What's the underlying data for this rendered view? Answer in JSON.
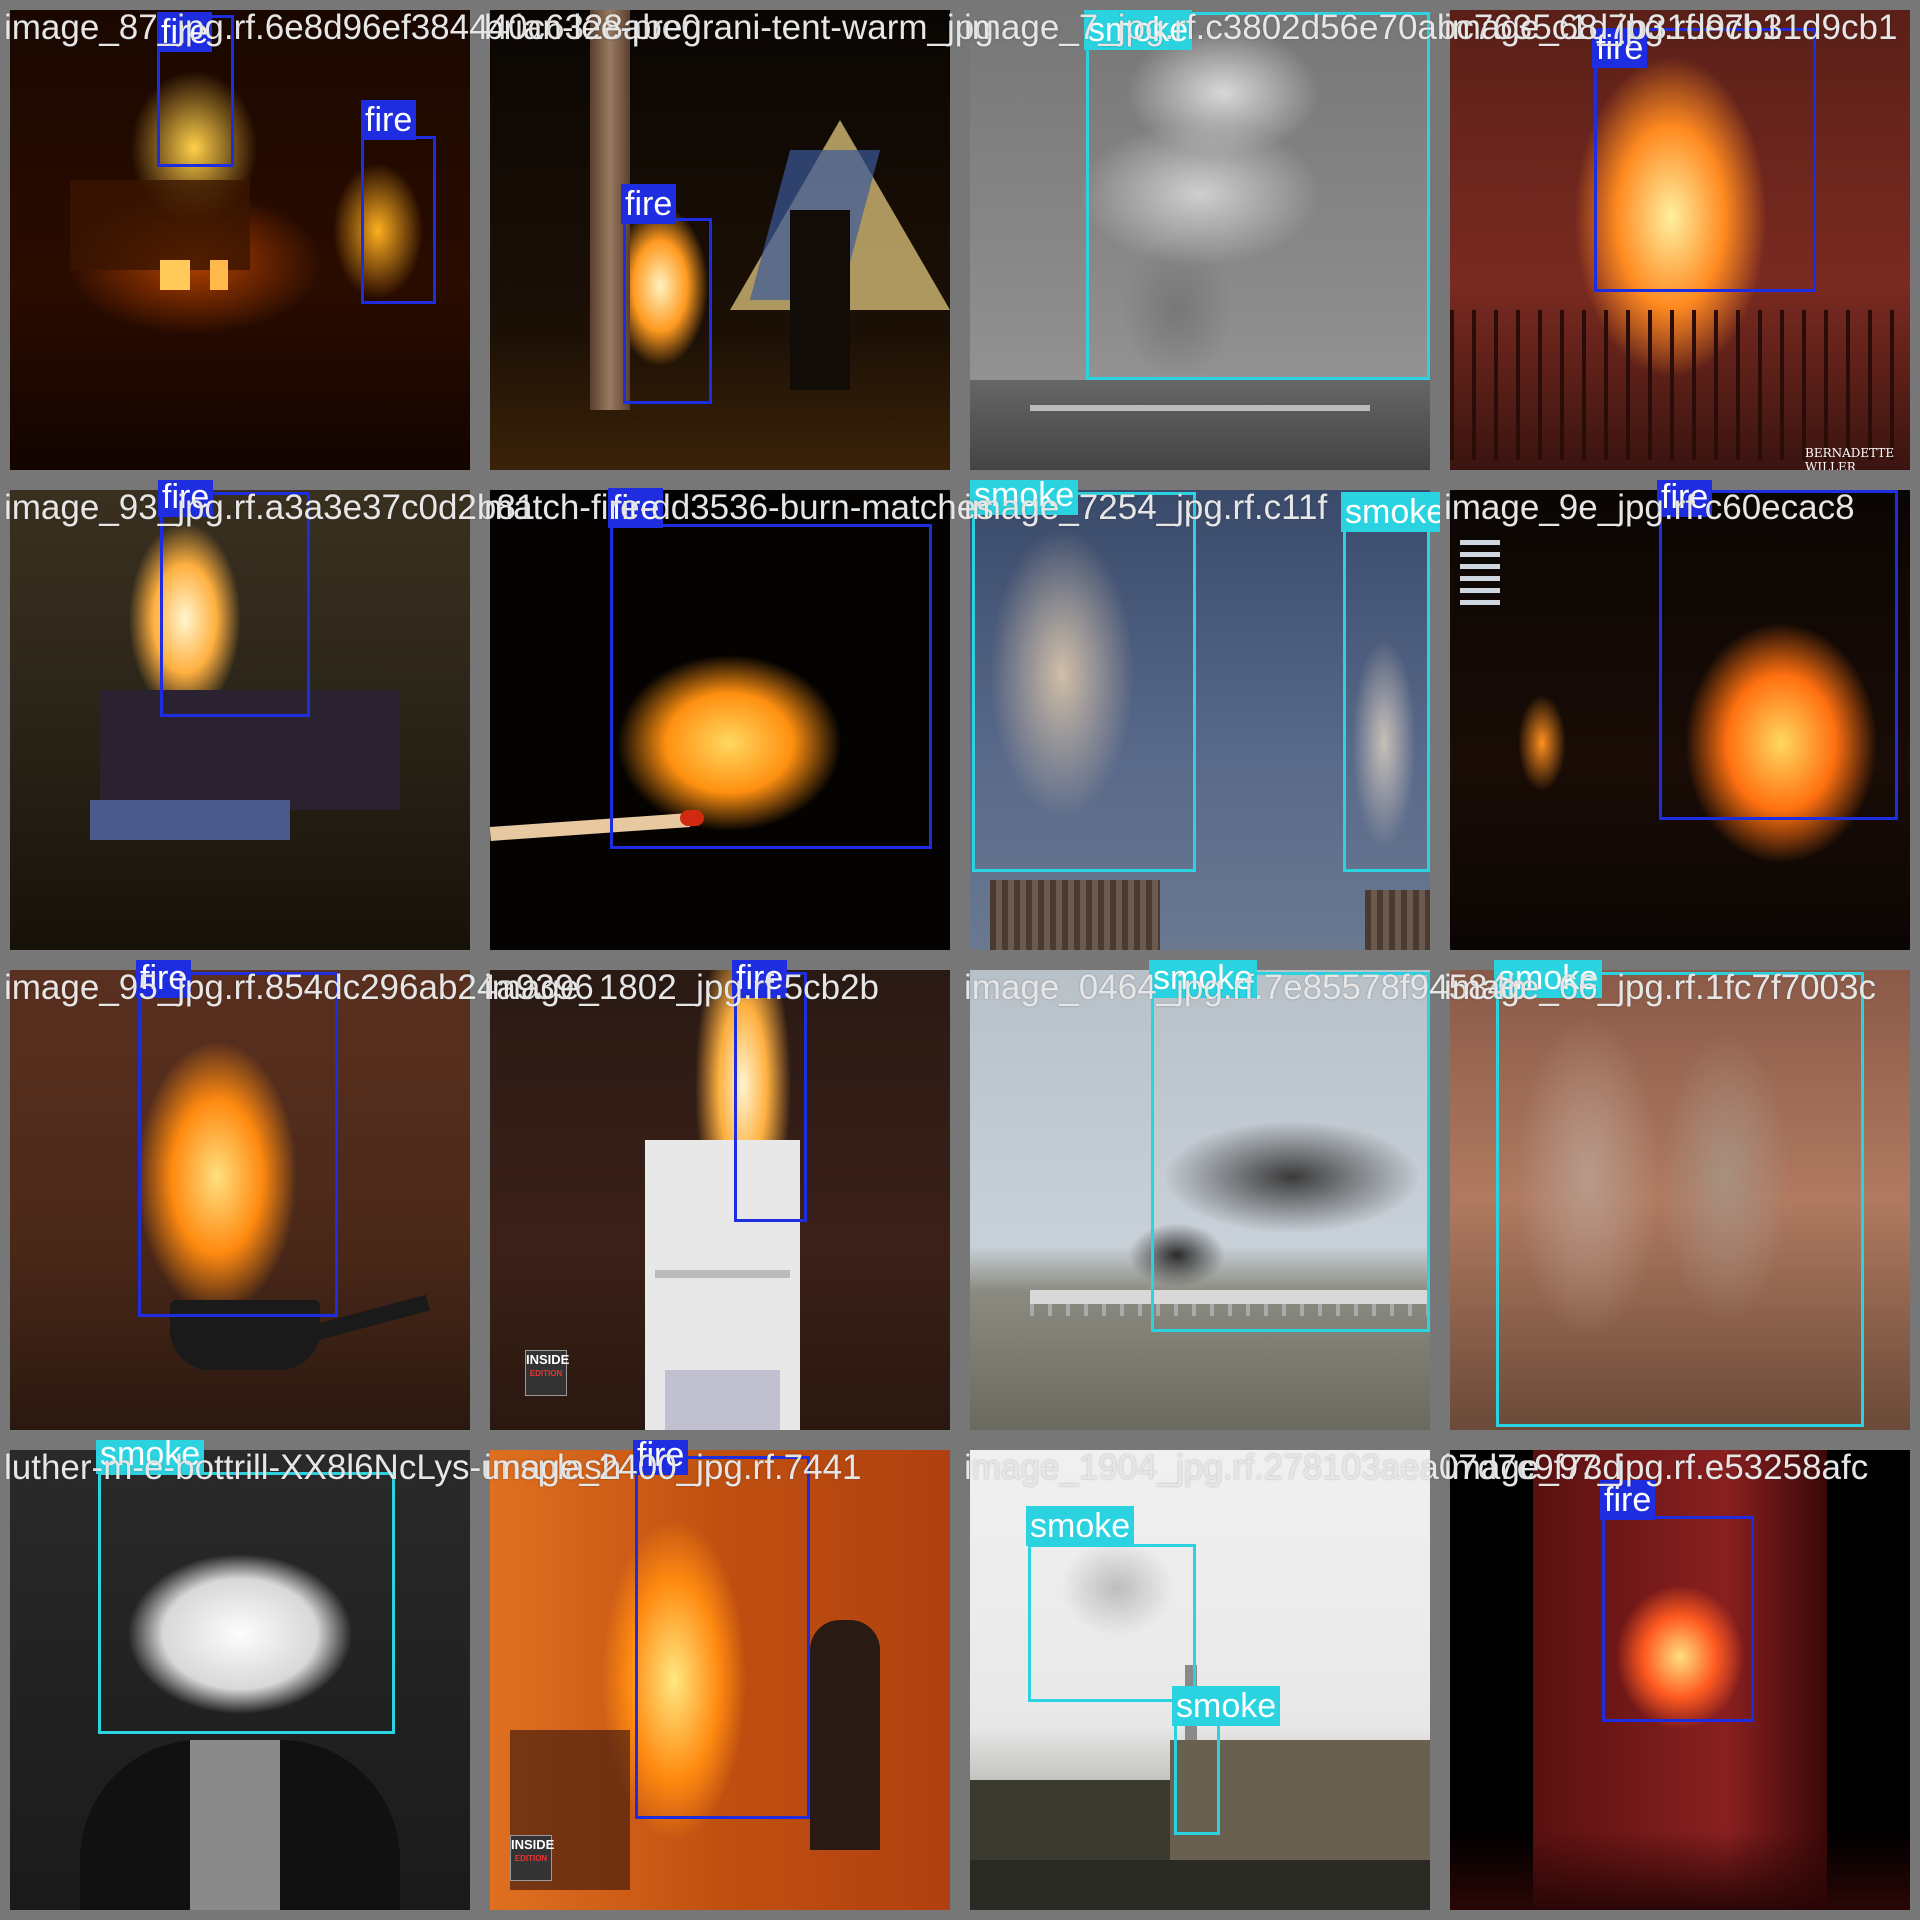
{
  "grid": {
    "cells": [
      {
        "filename": "image_87_jpg.rf.6e8d96ef384440c6328abe0",
        "scene": "burning-house"
      },
      {
        "filename": "brian-lee-pregrani-tent-warm_jpg",
        "scene": "campfire-tent"
      },
      {
        "filename": "image_7_jpg.rf.c3802d56e70abc7635c1d7b31d9cb1",
        "scene": "smoke-plume-gray"
      },
      {
        "filename": "image_68_jpg.rf.e7b31d9cb1",
        "scene": "bus-fire"
      },
      {
        "filename": "image_93_jpg.rf.a3a3e37c0d2b81",
        "scene": "truck-fire"
      },
      {
        "filename": "match-fire-dd3536-burn-matches",
        "scene": "match-flame"
      },
      {
        "filename": "image_7254_jpg.rf.c11f",
        "scene": "cooling-towers"
      },
      {
        "filename": "image_9e_jpg.rf.c60ecac8",
        "scene": "building-fire"
      },
      {
        "filename": "image_95_jpg.rf.854dc296ab24a9396",
        "scene": "pan-fire"
      },
      {
        "filename": "image_1802_jpg.rf.5cb2b",
        "scene": "stove-fire"
      },
      {
        "filename": "image_0464_jpg.rf.7e85578f94584b",
        "scene": "bridge-smoke"
      },
      {
        "filename": "image_66_jpg.rf.1fc7f7003c",
        "scene": "stacks-smoke"
      },
      {
        "filename": "luther-m-e-bottrill-XX8l6NcLys-unsplash",
        "scene": "vape-cloud"
      },
      {
        "filename": "image_2400_jpg.rf.7441",
        "scene": "kitchen-fire"
      },
      {
        "filename": "image_1904_jpg.rf.278103aea07d7c9f73d",
        "scene": "factory-smoke"
      },
      {
        "filename": "image_97_jpg.rf.e53258afc",
        "scene": "night-fire"
      }
    ]
  },
  "detections": [
    {
      "cell": 0,
      "label": "fire"
    },
    {
      "cell": 0,
      "label": "fire"
    },
    {
      "cell": 1,
      "label": "fire"
    },
    {
      "cell": 2,
      "label": "smoke"
    },
    {
      "cell": 3,
      "label": "fire"
    },
    {
      "cell": 4,
      "label": "fire"
    },
    {
      "cell": 5,
      "label": "fire"
    },
    {
      "cell": 6,
      "label": "smoke"
    },
    {
      "cell": 6,
      "label": "smoke"
    },
    {
      "cell": 7,
      "label": "fire"
    },
    {
      "cell": 8,
      "label": "fire"
    },
    {
      "cell": 9,
      "label": "fire"
    },
    {
      "cell": 10,
      "label": "smoke"
    },
    {
      "cell": 11,
      "label": "smoke"
    },
    {
      "cell": 12,
      "label": "smoke"
    },
    {
      "cell": 13,
      "label": "fire"
    },
    {
      "cell": 14,
      "label": "smoke"
    },
    {
      "cell": 14,
      "label": "smoke"
    },
    {
      "cell": 15,
      "label": "fire"
    }
  ],
  "watermarks": {
    "bus": "BERNADETTE WILLER",
    "inside_top": "INSIDE",
    "inside_bottom": "EDITION"
  },
  "colors": {
    "fire": "#1f2de0",
    "smoke": "#2bd3e0",
    "label_text": "#ffffff",
    "filename_text": "#e6e6e6"
  }
}
